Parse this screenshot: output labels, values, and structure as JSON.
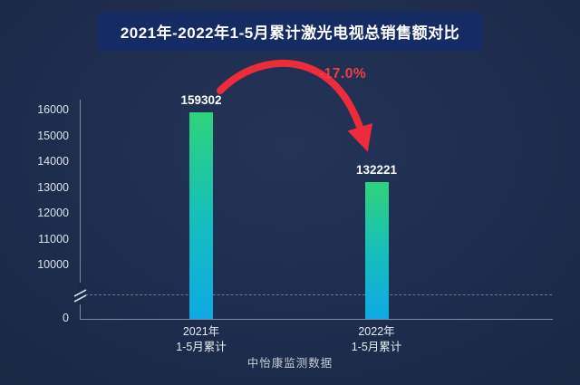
{
  "page": {
    "title": "2021年-2022年1-5月累计激光电视总销售额对比",
    "footer": "中怡康监测数据"
  },
  "annotation": {
    "change_label": "-17.0%",
    "color": "#f23c49"
  },
  "chart_data": {
    "type": "bar",
    "title": "2021年-2022年1-5月累计激光电视总销售额对比",
    "categories": [
      [
        "2021年",
        "1-5月累计"
      ],
      [
        "2022年",
        "1-5月累计"
      ]
    ],
    "values": [
      159302,
      132221
    ],
    "value_labels": [
      "159302",
      "132221"
    ],
    "y_ticks": [
      16000,
      15000,
      14000,
      13000,
      12000,
      11000,
      10000,
      0
    ],
    "axis_break": true,
    "grid": "single dashed break line",
    "legend": "none",
    "change_annotation": "-17.0%",
    "source": "中怡康监测数据",
    "bar_gradient": [
      "#2ed47b",
      "#14bdc0",
      "#0fa9e4"
    ],
    "arrow_color": "#ed2b3a"
  }
}
